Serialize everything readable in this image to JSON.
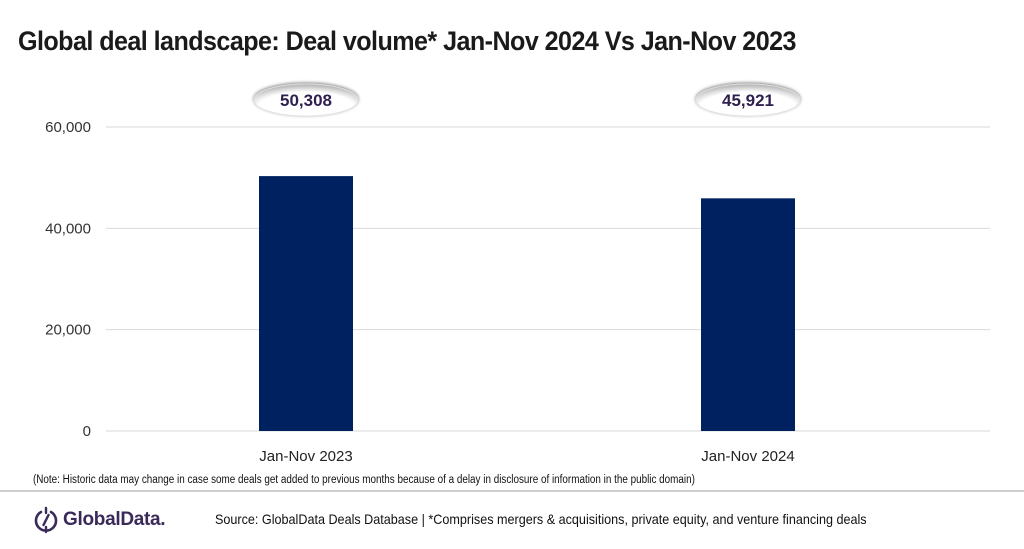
{
  "chart_data": {
    "type": "bar",
    "title": "Global deal landscape: Deal volume* Jan-Nov 2024 Vs Jan-Nov 2023",
    "categories": [
      "Jan-Nov 2023",
      "Jan-Nov 2024"
    ],
    "values": [
      50308,
      45921
    ],
    "data_labels": [
      "50,308",
      "45,921"
    ],
    "xlabel": "",
    "ylabel": "",
    "ylim": [
      0,
      60000
    ],
    "yticks": [
      0,
      20000,
      40000,
      60000
    ],
    "ytick_labels": [
      "0",
      "20,000",
      "40,000",
      "60,000"
    ],
    "grid": true,
    "legend": "none",
    "bar_color": "#00215f"
  },
  "note": "(Note: Historic data may change in case some deals get added to previous months because of a delay in disclosure of information in the public domain)",
  "footer": {
    "logo_text": "GlobalData.",
    "source": "Source: GlobalData Deals Database | *Comprises mergers & acquisitions, private equity, and venture financing deals"
  },
  "colors": {
    "bar": "#00215f",
    "label_text": "#2e1f4f",
    "logo": "#3a2a5a"
  }
}
